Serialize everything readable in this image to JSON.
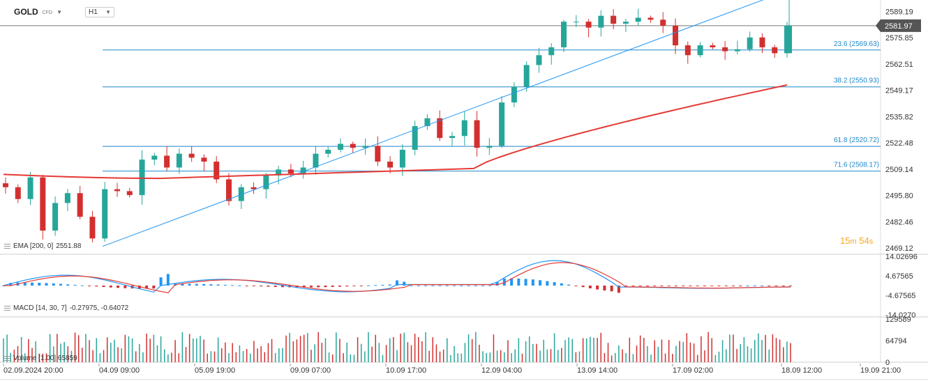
{
  "header": {
    "symbol": "GOLD",
    "instrument_type": "CFD",
    "timeframe": "H1"
  },
  "indicators": {
    "ema_label": "EMA [200, 0]",
    "ema_value": "2551.88",
    "macd_label": "MACD [14, 30, 7]",
    "macd_values": "-0.27975, -0.64072",
    "volume_label": "Volume [1.00] 65859"
  },
  "countdown": {
    "minutes": "15",
    "min_unit": "m",
    "seconds": "54",
    "sec_unit": "s"
  },
  "colors": {
    "up": "#26a69a",
    "down": "#d32f2f",
    "ema": "#e53935",
    "fib": "#1e88c9",
    "trend": "#2196f3",
    "price_tag": "#555555",
    "macd": "#2196f3",
    "signal": "#e53935"
  },
  "chart_data": [
    {
      "type": "candlestick",
      "title": "GOLD CFD H1",
      "price_axis_ticks": [
        "2589.19",
        "2575.85",
        "2562.51",
        "2549.17",
        "2535.82",
        "2522.48",
        "2509.14",
        "2495.80",
        "2482.46",
        "2469.12"
      ],
      "ylim": [
        2466,
        2595
      ],
      "current_price": "2581.97",
      "time_axis_labels": [
        "02.09.2024 20:00",
        "04.09 09:00",
        "05.09 19:00",
        "09.09 07:00",
        "10.09 17:00",
        "12.09 04:00",
        "13.09 14:00",
        "17.09 02:00",
        "18.09 12:00",
        "19.09 21:00"
      ],
      "fibonacci_levels": [
        {
          "label": "23.6 (2569.63)",
          "value": 2569.63
        },
        {
          "label": "38.2 (2550.93)",
          "value": 2550.93
        },
        {
          "label": "61.8 (2520.72)",
          "value": 2520.72
        },
        {
          "label": "71.6 (2508.17)",
          "value": 2508.17
        }
      ],
      "trendline": {
        "from": {
          "x": "04.09 09:00",
          "y": 2470
        },
        "to": {
          "x": "18.09 12:00",
          "y": 2600
        }
      },
      "ema_200": {
        "start": 2506.5,
        "end": 2551.88
      },
      "closes_approx": [
        2500,
        2494,
        2505,
        2478,
        2492,
        2497,
        2485,
        2474,
        2499,
        2498,
        2496,
        2514,
        2516,
        2510,
        2517,
        2515,
        2513,
        2504,
        2493,
        2500,
        2499,
        2506,
        2509,
        2507,
        2510,
        2517,
        2519,
        2522,
        2520,
        2521,
        2513,
        2510,
        2519,
        2531,
        2535,
        2525,
        2526,
        2534,
        2520,
        2521,
        2543,
        2551,
        2562,
        2567,
        2571,
        2584,
        2584,
        2581,
        2587,
        2583,
        2584,
        2586,
        2585,
        2582,
        2572,
        2567,
        2572,
        2571,
        2569,
        2570,
        2576,
        2571,
        2568,
        2582
      ]
    },
    {
      "type": "macd",
      "label": "MACD [14, 30, 7]",
      "axis_ticks": [
        "14.02696",
        "4.67565",
        "-4.67565",
        "-14.0270"
      ],
      "values": [
        "-0.27975",
        "-0.64072"
      ]
    },
    {
      "type": "volume",
      "label": "Volume [1.00]",
      "current": 65859,
      "axis_ticks": [
        "129589",
        "64794",
        "0"
      ]
    }
  ]
}
